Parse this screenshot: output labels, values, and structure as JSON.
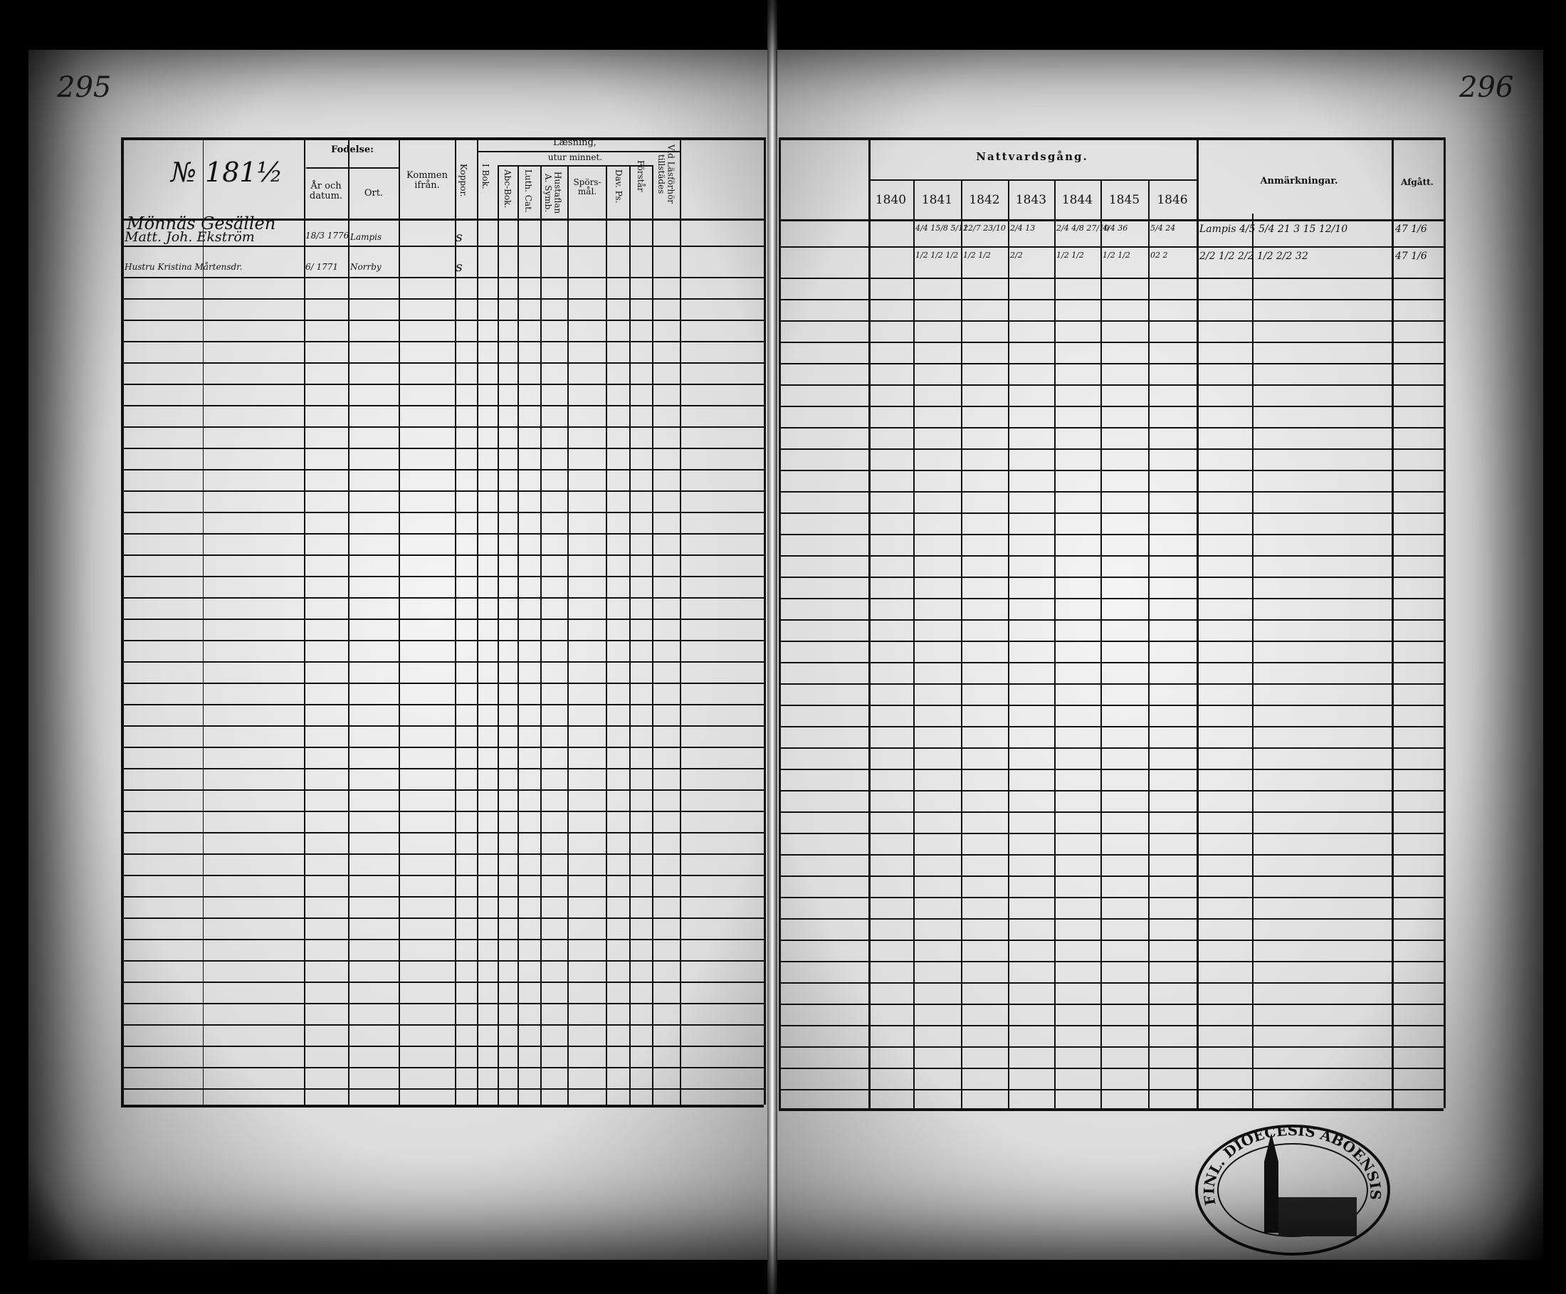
{
  "left_page": {
    "page_number": "295",
    "header": {
      "number_label": "№ 181½",
      "birth": "Fodelse:",
      "birth_year": "År och datum.",
      "birth_place": "Ort.",
      "came_from": "Kommen ifrån.",
      "smallpox": "Koppor.",
      "reading": "Læsning,",
      "in_book": "I Bok.",
      "by_heart": "utur minnet.",
      "abc": "Abc-Bok.",
      "catechism": "Luth. Cat.",
      "house_table": "Hustaflan A. Symb.",
      "questions": "Spörs-mål.",
      "psalms": "Dav. Ps.",
      "understanding": "Förstår",
      "examination": "Vid Läsförhör tillstädes"
    },
    "section_heading": "Mönnäs Gesällen",
    "rows": [
      {
        "name": "Matt. Joh. Ekström",
        "birth_date": "18/3 1776",
        "birth_place": "Lampis",
        "smallpox": "s"
      },
      {
        "name": "Hustru Kristina Mårtensdr.",
        "birth_date": "6/ 1771",
        "birth_place": "Norrby",
        "smallpox": "s"
      }
    ]
  },
  "right_page": {
    "page_number": "296",
    "header": {
      "communion": "Nattvardsgång.",
      "years": [
        "1840",
        "1841",
        "1842",
        "1843",
        "1844",
        "1845",
        "1846"
      ],
      "remarks": "Anmärkningar.",
      "departed": "Afgått."
    },
    "rows": [
      {
        "years": [
          "",
          "4/4 15/8 5/12",
          "12/7 23/10",
          "2/4 13",
          "2/4 4/8 27/10",
          "4/4 36",
          "5/4 24"
        ],
        "remarks": "Lampis 4/5 5/4 21 3 15 12/10",
        "departed": "47 1/6"
      },
      {
        "years": [
          "",
          "1/2 1/2 1/2",
          "1/2 1/2",
          "2/2",
          "1/2 1/2",
          "1/2 1/2",
          "02 2"
        ],
        "remarks": "2/2 1/2 2/2 1/2 2/2 32",
        "departed": "47 1/6"
      }
    ]
  },
  "stamp": {
    "text": "FINL. DIOECESIS ABOENSIS"
  },
  "colors": {
    "ink": "#111111",
    "paper": "#e9e9e9",
    "border": "#000000"
  }
}
